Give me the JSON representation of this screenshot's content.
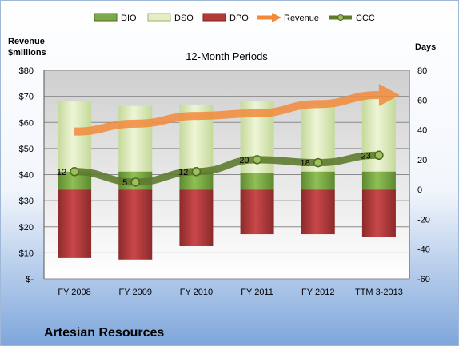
{
  "company": "Artesian Resources",
  "chart_data": {
    "type": "bar",
    "title": "12-Month Periods",
    "left_axis_label_line1": "Revenue",
    "left_axis_label_line2": "$millions",
    "right_axis_label": "Days",
    "categories": [
      "FY 2008",
      "FY 2009",
      "FY 2010",
      "FY 2011",
      "FY 2012",
      "TTM 3-2013"
    ],
    "left_ylim": [
      0,
      80
    ],
    "left_ticks": [
      0,
      10,
      20,
      30,
      40,
      50,
      60,
      70,
      80
    ],
    "left_tick_labels": [
      "$-",
      "$10",
      "$20",
      "$30",
      "$40",
      "$50",
      "$60",
      "$70",
      "$80"
    ],
    "right_ylim": [
      -60,
      80
    ],
    "right_ticks": [
      -60,
      -40,
      -20,
      0,
      20,
      40,
      60,
      80
    ],
    "grid": "horizontal",
    "legend_position": "top",
    "series": [
      {
        "name": "DIO",
        "type": "stacked-bar",
        "axis": "right",
        "color": "#7ea94a",
        "values": [
          12,
          12,
          12,
          11,
          12,
          12
        ]
      },
      {
        "name": "DSO",
        "type": "stacked-bar",
        "axis": "right",
        "color": "#dce9b6",
        "values": [
          47,
          44,
          45,
          48,
          45,
          49
        ]
      },
      {
        "name": "DPO",
        "type": "negative-bar",
        "axis": "right",
        "color": "#b23a3a",
        "values": [
          -46,
          -47,
          -38,
          -30,
          -30,
          -32
        ]
      },
      {
        "name": "Revenue",
        "type": "arrow-line",
        "axis": "left",
        "color": "#f2893b",
        "values": [
          56.5,
          59.5,
          62.5,
          63.5,
          67,
          70.5
        ]
      },
      {
        "name": "CCC",
        "type": "line",
        "axis": "right",
        "color": "#5e7a2e",
        "values": [
          12,
          5,
          12,
          20,
          18,
          23
        ],
        "labels": [
          "12",
          "5",
          "12",
          "20",
          "18",
          "23"
        ]
      }
    ]
  }
}
